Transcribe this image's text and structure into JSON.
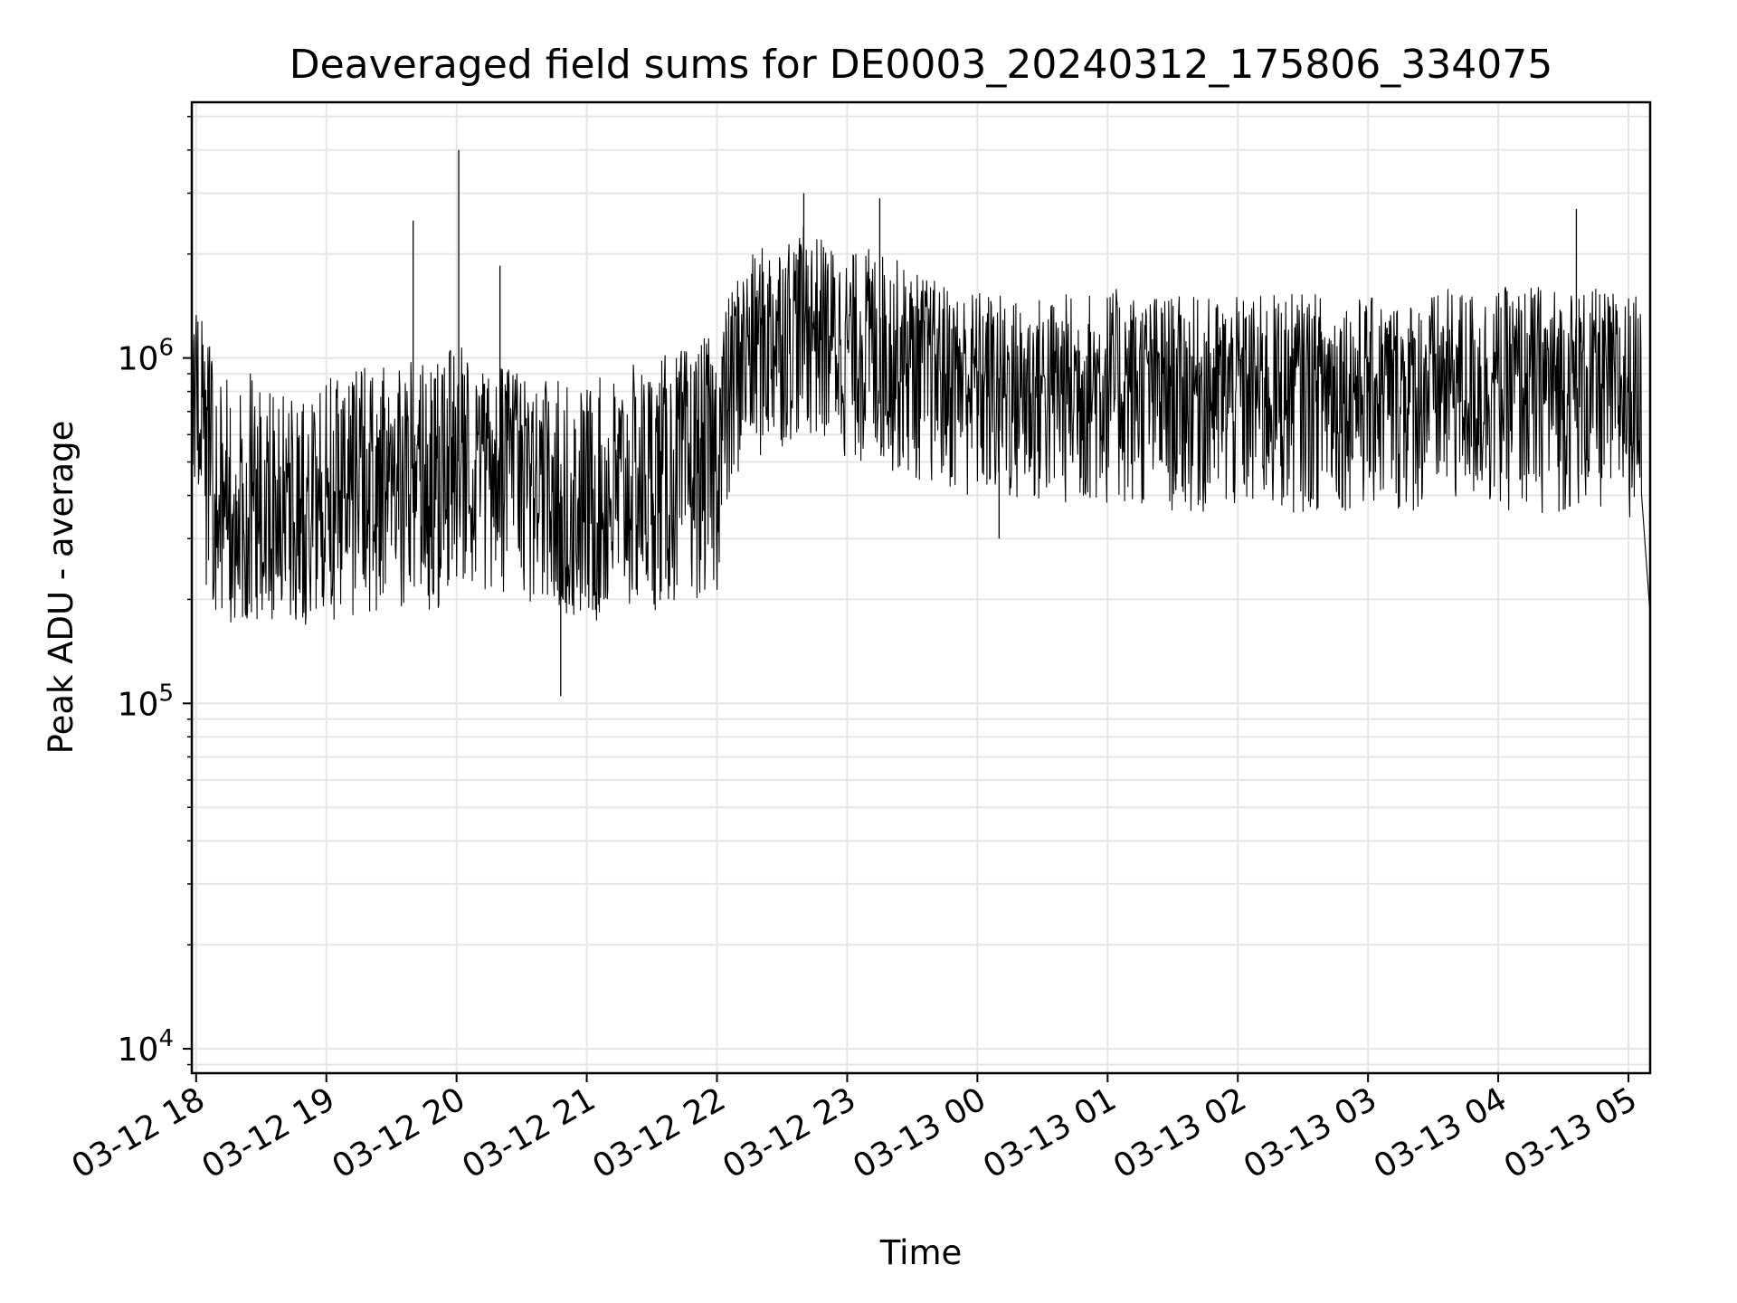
{
  "chart_data": {
    "type": "line",
    "title": "Deaveraged field sums for DE0003_20240312_175806_334075",
    "xlabel": "Time",
    "ylabel": "Peak ADU - average",
    "y_scale": "log",
    "ylim": [
      8500,
      5500000
    ],
    "xlim": [
      "2024-03-12 17:58",
      "2024-03-13 05:10"
    ],
    "grid": true,
    "line_color": "#000000",
    "grid_color": "#e6e6e6",
    "x_ticks": [
      {
        "value": "2024-03-12 18:00",
        "label": "03-12 18"
      },
      {
        "value": "2024-03-12 19:00",
        "label": "03-12 19"
      },
      {
        "value": "2024-03-12 20:00",
        "label": "03-12 20"
      },
      {
        "value": "2024-03-12 21:00",
        "label": "03-12 21"
      },
      {
        "value": "2024-03-12 22:00",
        "label": "03-12 22"
      },
      {
        "value": "2024-03-12 23:00",
        "label": "03-12 23"
      },
      {
        "value": "2024-03-13 00:00",
        "label": "03-13 00"
      },
      {
        "value": "2024-03-13 01:00",
        "label": "03-13 01"
      },
      {
        "value": "2024-03-13 02:00",
        "label": "03-13 02"
      },
      {
        "value": "2024-03-13 03:00",
        "label": "03-13 03"
      },
      {
        "value": "2024-03-13 04:00",
        "label": "03-13 04"
      },
      {
        "value": "2024-03-13 05:00",
        "label": "03-13 05"
      }
    ],
    "y_ticks": [
      {
        "value": 10000,
        "base": "10",
        "exp": "4"
      },
      {
        "value": 100000,
        "base": "10",
        "exp": "5"
      },
      {
        "value": 1000000,
        "base": "10",
        "exp": "6"
      }
    ],
    "series": [
      {
        "x": [
          "2024-03-12 17:58",
          "2024-03-12 18:00",
          "2024-03-12 18:05",
          "2024-03-12 18:10",
          "2024-03-12 18:15",
          "2024-03-12 18:20",
          "2024-03-12 18:30",
          "2024-03-12 18:40",
          "2024-03-12 18:50",
          "2024-03-12 19:00",
          "2024-03-12 19:10",
          "2024-03-12 19:20",
          "2024-03-12 19:30",
          "2024-03-12 19:40",
          "2024-03-12 19:50",
          "2024-03-12 20:00",
          "2024-03-12 20:10",
          "2024-03-12 20:20",
          "2024-03-12 20:30",
          "2024-03-12 20:40",
          "2024-03-12 20:50",
          "2024-03-12 21:00",
          "2024-03-12 21:10",
          "2024-03-12 21:20",
          "2024-03-12 21:30",
          "2024-03-12 21:40",
          "2024-03-12 21:50",
          "2024-03-12 22:00",
          "2024-03-12 22:10",
          "2024-03-12 22:20",
          "2024-03-12 22:30",
          "2024-03-12 22:40",
          "2024-03-12 22:50",
          "2024-03-12 23:00",
          "2024-03-12 23:10",
          "2024-03-12 23:20",
          "2024-03-12 23:30",
          "2024-03-12 23:40",
          "2024-03-12 23:50",
          "2024-03-13 00:00",
          "2024-03-13 00:20",
          "2024-03-13 00:40",
          "2024-03-13 01:00",
          "2024-03-13 01:20",
          "2024-03-13 01:40",
          "2024-03-13 02:00",
          "2024-03-13 02:20",
          "2024-03-13 02:40",
          "2024-03-13 03:00",
          "2024-03-13 03:20",
          "2024-03-13 03:40",
          "2024-03-13 04:00",
          "2024-03-13 04:20",
          "2024-03-13 04:40",
          "2024-03-13 05:00",
          "2024-03-13 05:06",
          "2024-03-13 05:10"
        ],
        "y": [
          750000,
          800000,
          650000,
          350000,
          320000,
          380000,
          340000,
          360000,
          330000,
          380000,
          420000,
          400000,
          430000,
          470000,
          460000,
          500000,
          520000,
          490000,
          450000,
          430000,
          410000,
          390000,
          400000,
          430000,
          450000,
          470000,
          490000,
          520000,
          1100000,
          1200000,
          1300000,
          1400000,
          1300000,
          1150000,
          1200000,
          1150000,
          1050000,
          1000000,
          950000,
          900000,
          850000,
          860000,
          880000,
          870000,
          860000,
          850000,
          860000,
          880000,
          870000,
          860000,
          900000,
          880000,
          870000,
          880000,
          850000,
          950000,
          180000
        ],
        "envelope_high": [
          1050000,
          1400000,
          1200000,
          800000,
          900000,
          1000000,
          850000,
          800000,
          850000,
          900000,
          900000,
          950000,
          950000,
          1000000,
          950000,
          1100000,
          1050000,
          950000,
          900000,
          900000,
          850000,
          850000,
          900000,
          950000,
          1000000,
          1050000,
          1100000,
          1200000,
          1800000,
          2100000,
          2300000,
          2400000,
          2200000,
          2000000,
          2100000,
          2000000,
          1800000,
          1700000,
          1600000,
          1600000,
          1500000,
          1550000,
          1600000,
          1550000,
          1500000,
          1500000,
          1550000,
          1550000,
          1500000,
          1500000,
          1600000,
          1600000,
          1650000,
          1600000,
          1550000,
          1500000,
          900000
        ],
        "envelope_low": [
          400000,
          450000,
          200000,
          160000,
          150000,
          160000,
          170000,
          180000,
          165000,
          170000,
          180000,
          175000,
          185000,
          190000,
          185000,
          200000,
          210000,
          200000,
          180000,
          175000,
          170000,
          165000,
          170000,
          180000,
          185000,
          190000,
          200000,
          210000,
          450000,
          500000,
          550000,
          600000,
          550000,
          500000,
          480000,
          470000,
          440000,
          420000,
          400000,
          380000,
          360000,
          370000,
          370000,
          360000,
          350000,
          340000,
          350000,
          360000,
          360000,
          350000,
          370000,
          360000,
          350000,
          360000,
          340000,
          380000,
          150000
        ],
        "spikes": [
          {
            "x": "2024-03-12 19:40",
            "y": 2500000
          },
          {
            "x": "2024-03-12 20:01",
            "y": 4000000
          },
          {
            "x": "2024-03-12 20:20",
            "y": 1850000
          },
          {
            "x": "2024-03-12 20:48",
            "y": 105000
          },
          {
            "x": "2024-03-12 22:40",
            "y": 3000000
          },
          {
            "x": "2024-03-12 23:15",
            "y": 2900000
          },
          {
            "x": "2024-03-13 00:07",
            "y": 1250000
          },
          {
            "x": "2024-03-13 00:10",
            "y": 300000
          },
          {
            "x": "2024-03-13 04:36",
            "y": 2700000
          }
        ]
      }
    ]
  }
}
